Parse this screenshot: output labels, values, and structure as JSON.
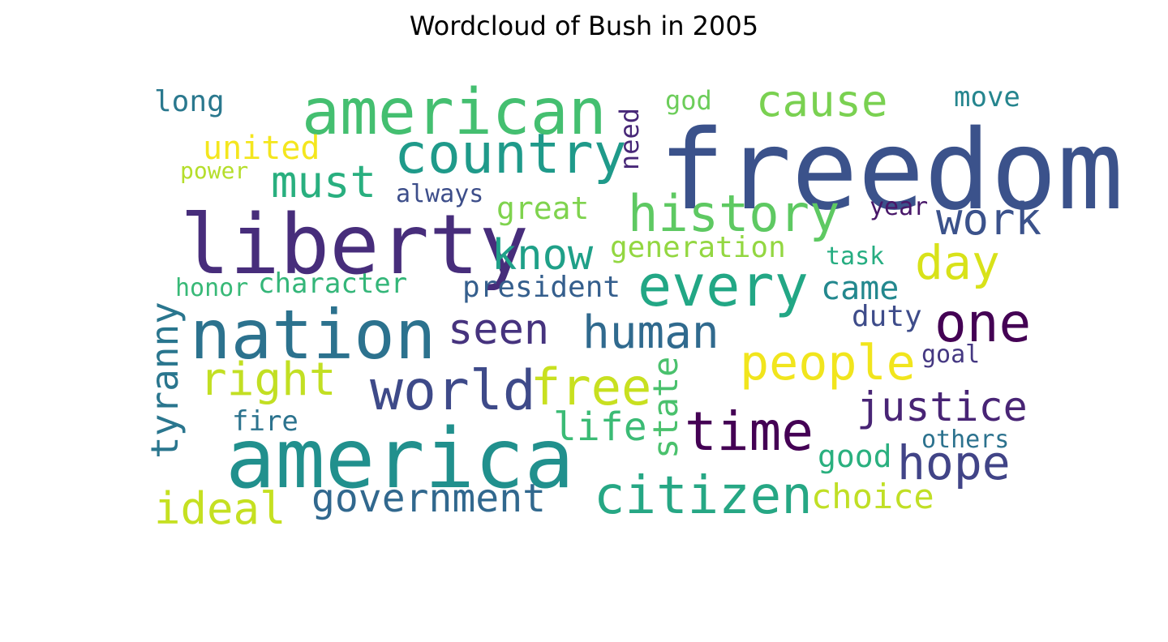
{
  "title": "Wordcloud of Bush in 2005",
  "words": [
    {
      "text": "freedom",
      "color": "#3b528b"
    },
    {
      "text": "liberty",
      "color": "#472d7b"
    },
    {
      "text": "america",
      "color": "#21908d"
    },
    {
      "text": "nation",
      "color": "#2c728e"
    },
    {
      "text": "american",
      "color": "#44bf70"
    },
    {
      "text": "country",
      "color": "#1f9a8a"
    },
    {
      "text": "every",
      "color": "#22a785"
    },
    {
      "text": "world",
      "color": "#3e4a89"
    },
    {
      "text": "history",
      "color": "#5ec962"
    },
    {
      "text": "time",
      "color": "#440154"
    },
    {
      "text": "people",
      "color": "#f1e51d"
    },
    {
      "text": "free",
      "color": "#c8e020"
    },
    {
      "text": "citizen",
      "color": "#26a784"
    },
    {
      "text": "one",
      "color": "#440154"
    },
    {
      "text": "hope",
      "color": "#414487"
    },
    {
      "text": "human",
      "color": "#306a8e"
    },
    {
      "text": "right",
      "color": "#c2df23"
    },
    {
      "text": "cause",
      "color": "#7ad151"
    },
    {
      "text": "work",
      "color": "#3b528b"
    },
    {
      "text": "day",
      "color": "#d8e219"
    },
    {
      "text": "must",
      "color": "#29af7f"
    },
    {
      "text": "know",
      "color": "#1fa088"
    },
    {
      "text": "justice",
      "color": "#482475"
    },
    {
      "text": "ideal",
      "color": "#c5e021"
    },
    {
      "text": "government",
      "color": "#31688e"
    },
    {
      "text": "seen",
      "color": "#46337e"
    },
    {
      "text": "tyranny",
      "color": "#2a768e"
    },
    {
      "text": "life",
      "color": "#3bbb75"
    },
    {
      "text": "state",
      "color": "#4ac16d"
    },
    {
      "text": "united",
      "color": "#f4e61e"
    },
    {
      "text": "came",
      "color": "#23888e"
    },
    {
      "text": "choice",
      "color": "#c0df25"
    },
    {
      "text": "great",
      "color": "#7fd34e"
    },
    {
      "text": "generation",
      "color": "#93d741"
    },
    {
      "text": "president",
      "color": "#355f8d"
    },
    {
      "text": "character",
      "color": "#34b679"
    },
    {
      "text": "long",
      "color": "#2a788e"
    },
    {
      "text": "good",
      "color": "#2ab07f"
    },
    {
      "text": "duty",
      "color": "#3e4c8a"
    },
    {
      "text": "move",
      "color": "#25858e"
    },
    {
      "text": "need",
      "color": "#482878"
    },
    {
      "text": "god",
      "color": "#6ccd5a"
    },
    {
      "text": "always",
      "color": "#3d4e8a"
    },
    {
      "text": "power",
      "color": "#b5de2b"
    },
    {
      "text": "year",
      "color": "#481769"
    },
    {
      "text": "goal",
      "color": "#453882"
    },
    {
      "text": "others",
      "color": "#2c728e"
    },
    {
      "text": "fire",
      "color": "#2c738e"
    },
    {
      "text": "task",
      "color": "#26ad81"
    },
    {
      "text": "honor",
      "color": "#38b977"
    }
  ]
}
